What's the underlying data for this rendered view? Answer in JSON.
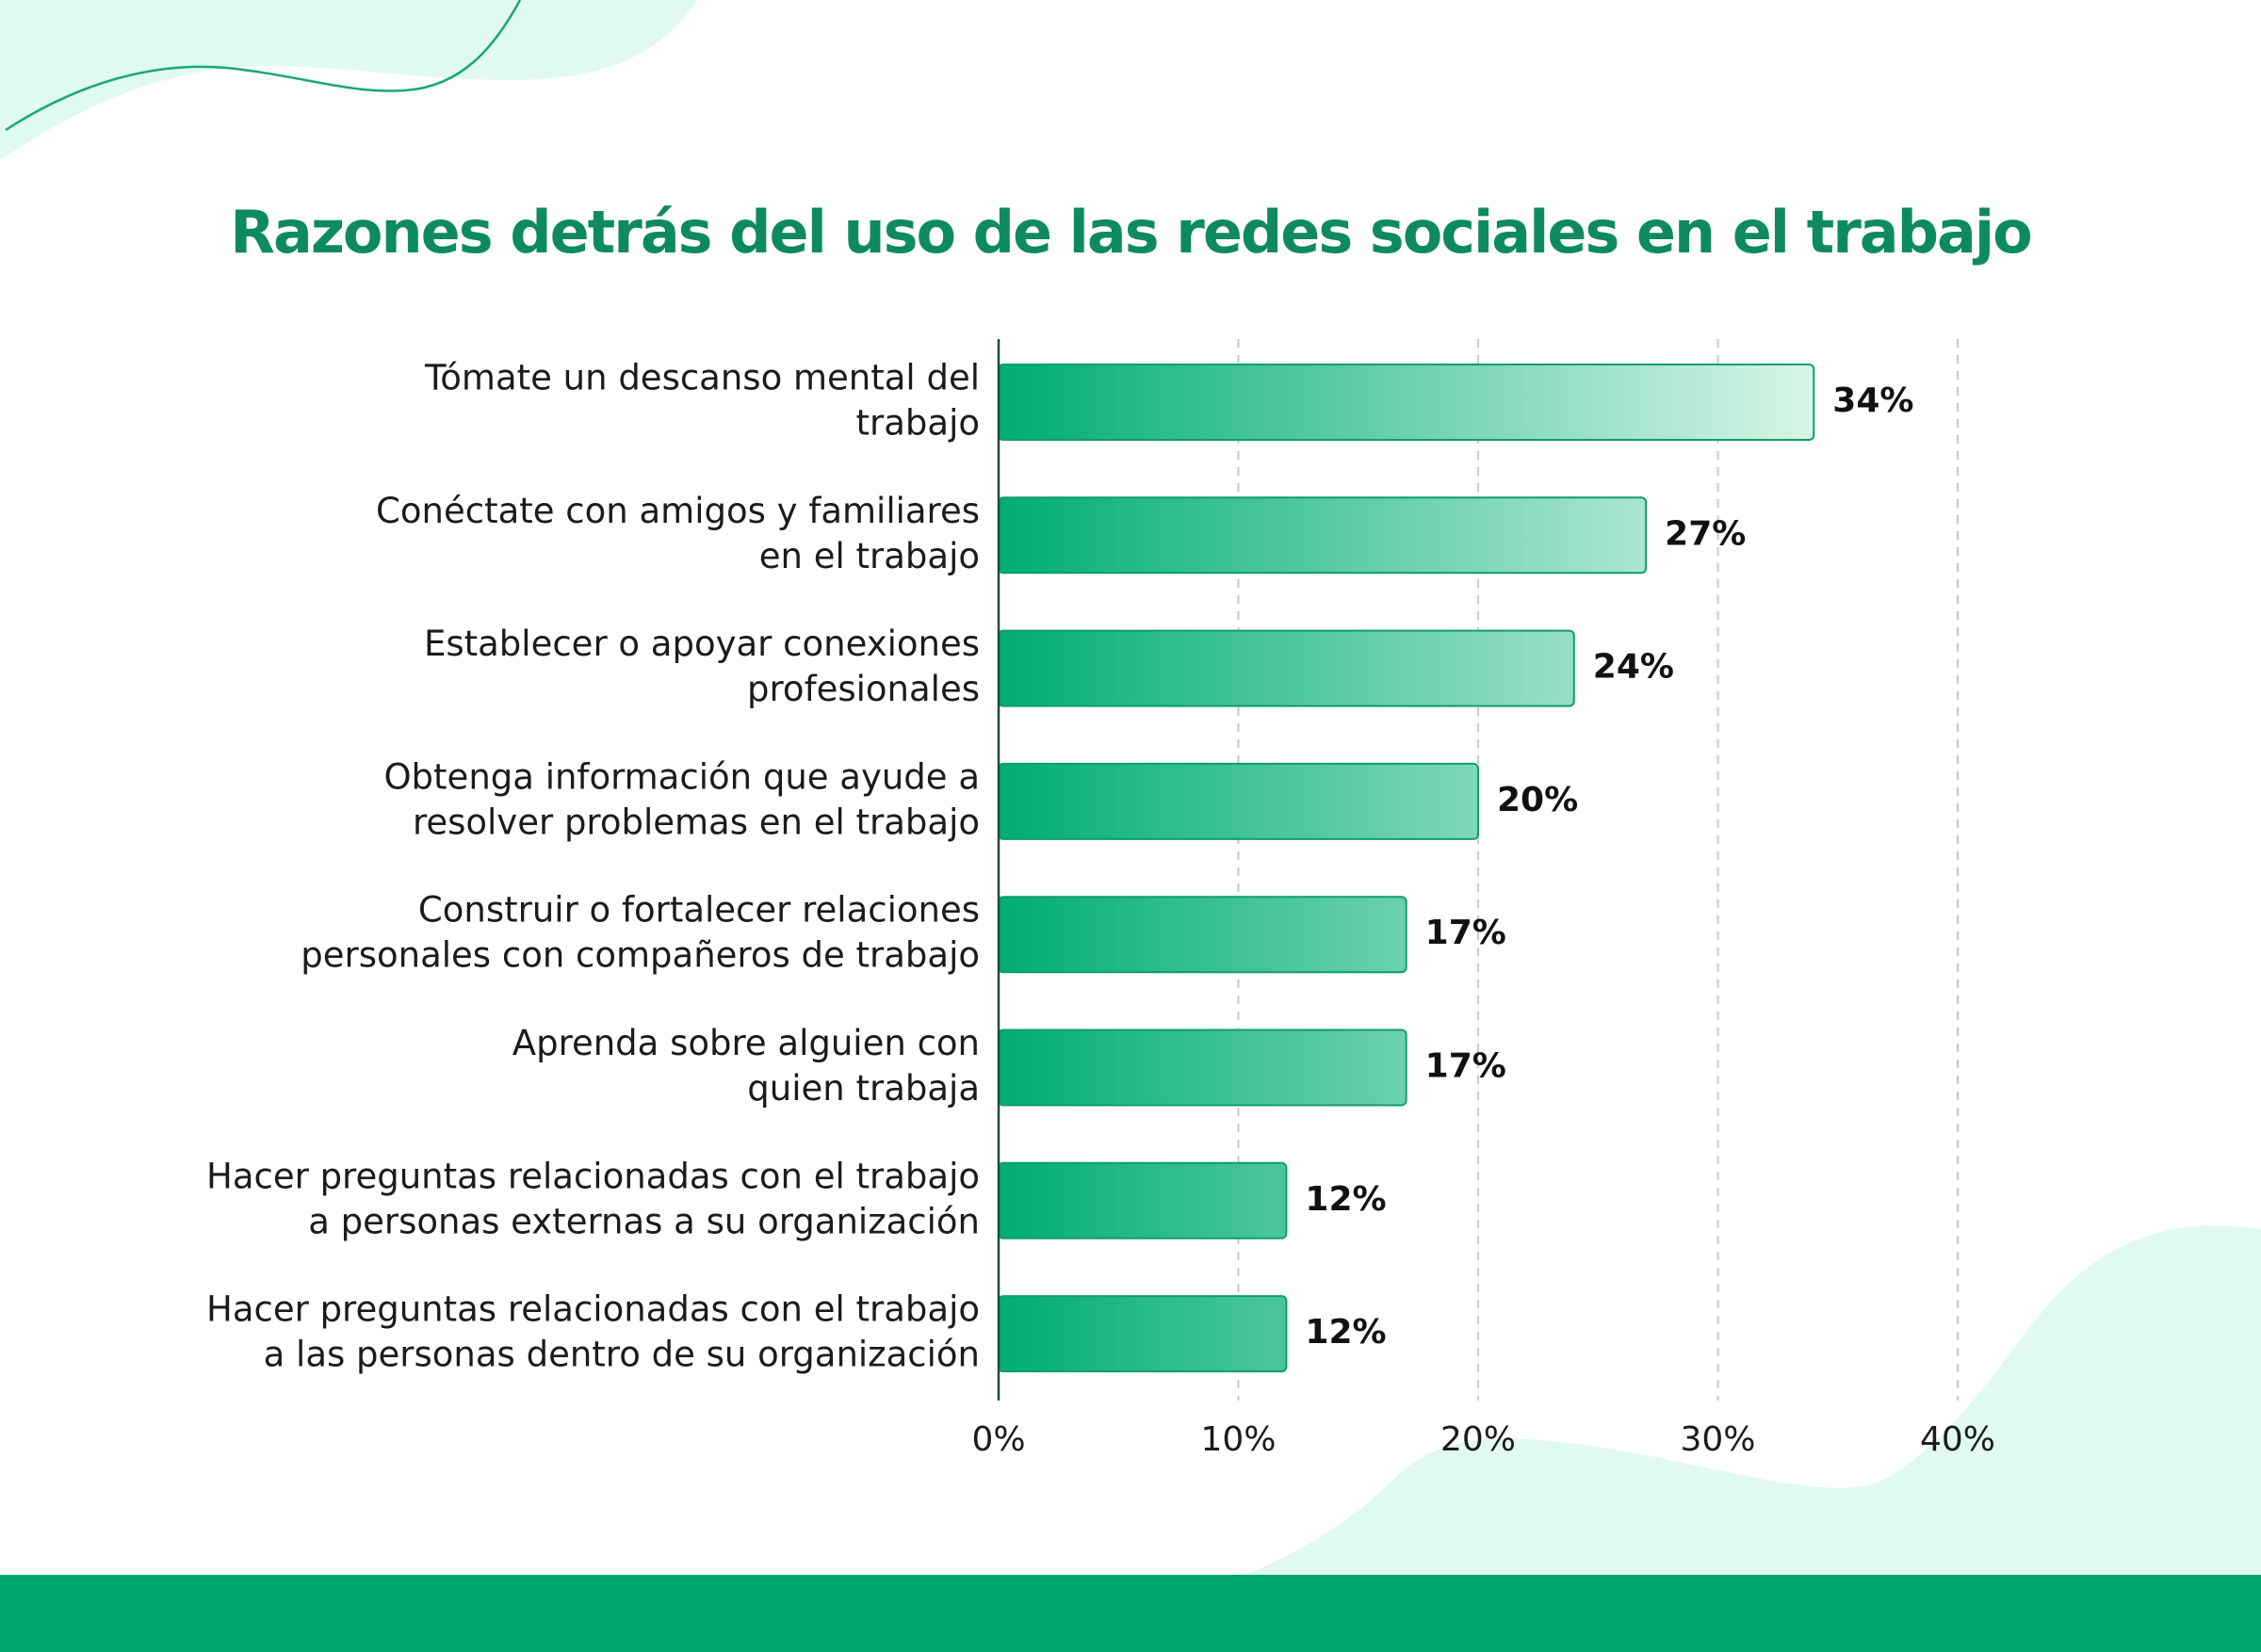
{
  "title": "Razones detrás del uso de las redes sociales en el trabajo",
  "colors": {
    "title": "#0e8a5f",
    "bar_start": "#00ad74",
    "bar_end": "#d8f5e8",
    "bar_stroke": "#0f9e6b",
    "grid": "#c8c8c8",
    "axis": "#1f4b3c",
    "footer": "#00a870",
    "decoration": "#e0faf1"
  },
  "chart_data": {
    "type": "bar",
    "orientation": "horizontal",
    "categories": [
      [
        "Tómate un descanso mental del",
        "trabajo"
      ],
      [
        "Conéctate con amigos y familiares",
        "en el trabajo"
      ],
      [
        "Establecer o apoyar conexiones",
        "profesionales"
      ],
      [
        "Obtenga información que ayude a",
        "resolver problemas en el trabajo"
      ],
      [
        "Construir o fortalecer relaciones",
        "personales con compañeros de trabajo"
      ],
      [
        "Aprenda sobre alguien con",
        "quien trabaja"
      ],
      [
        "Hacer preguntas relacionadas con el trabajo",
        "a personas externas a su organización"
      ],
      [
        "Hacer preguntas relacionadas con el trabajo",
        "a las personas dentro de su organización"
      ]
    ],
    "values": [
      34,
      27,
      24,
      20,
      17,
      17,
      12,
      12
    ],
    "value_labels": [
      "34%",
      "27%",
      "24%",
      "20%",
      "17%",
      "17%",
      "12%",
      "12%"
    ],
    "xlim": [
      0,
      40
    ],
    "xticks": [
      0,
      10,
      20,
      30,
      40
    ],
    "xtick_labels": [
      "0%",
      "10%",
      "20%",
      "30%",
      "40%"
    ],
    "grid": "vertical dashed"
  }
}
